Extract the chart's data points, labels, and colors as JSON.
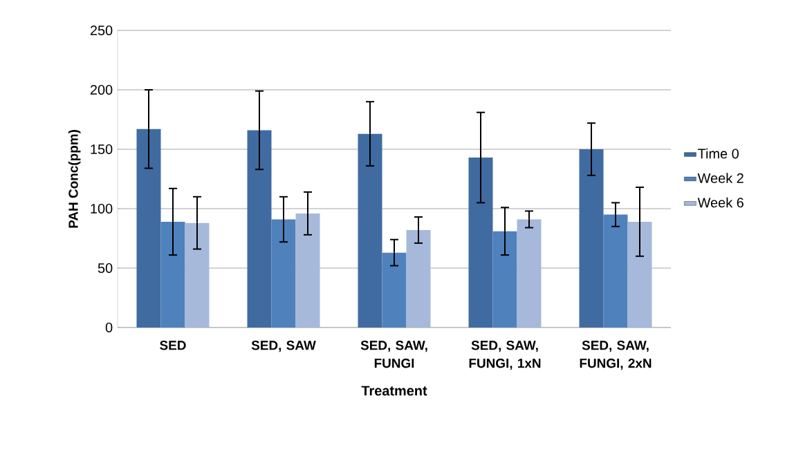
{
  "chart_data": {
    "type": "bar",
    "xlabel": "Treatment",
    "ylabel": "PAH Conc(ppm)",
    "categories": [
      "SED",
      "SED, SAW",
      "SED, SAW, FUNGI",
      "SED, SAW, FUNGI, 1xN",
      "SED, SAW, FUNGI, 2xN"
    ],
    "series": [
      {
        "name": "Time 0",
        "color": "#3f6ba1",
        "values": [
          167,
          166,
          163,
          143,
          150
        ],
        "errors": [
          33,
          33,
          27,
          38,
          22
        ]
      },
      {
        "name": "Week 2",
        "color": "#4f81bd",
        "values": [
          89,
          91,
          63,
          81,
          95
        ],
        "errors": [
          28,
          19,
          11,
          20,
          10
        ]
      },
      {
        "name": "Week 6",
        "color": "#a6b9da",
        "values": [
          88,
          96,
          82,
          91,
          89
        ],
        "errors": [
          22,
          18,
          11,
          7,
          29
        ]
      }
    ],
    "ylim": [
      0,
      250
    ],
    "yticks": [
      0,
      50,
      100,
      150,
      200,
      250
    ],
    "grid": "y",
    "legend": "right"
  }
}
